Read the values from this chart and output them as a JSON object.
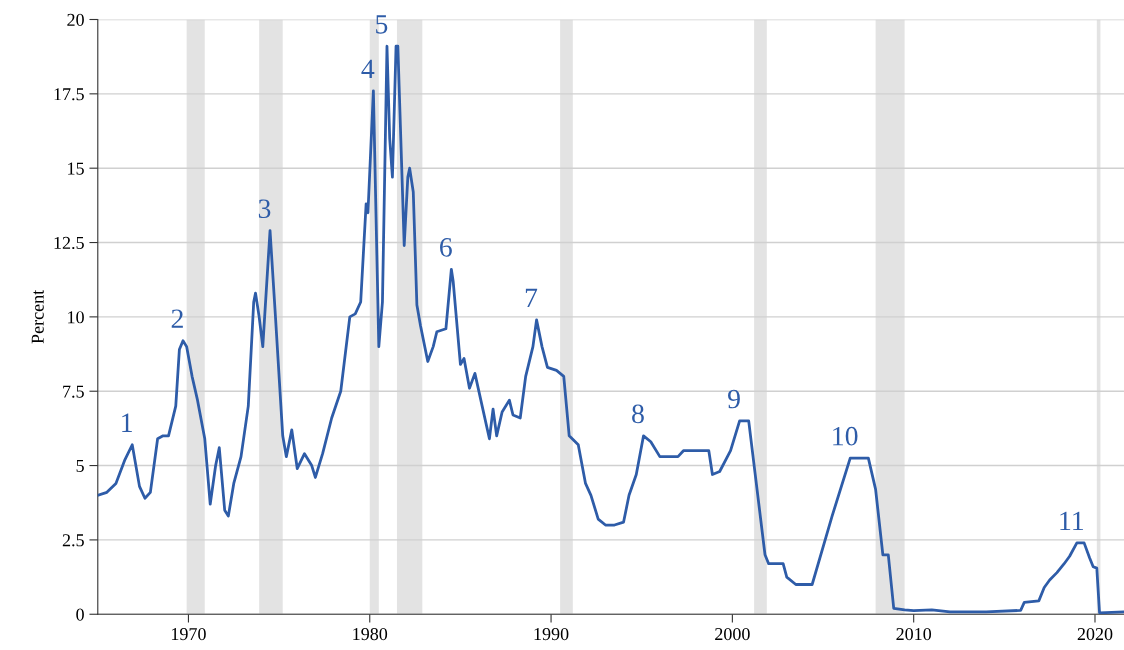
{
  "chart_data": {
    "type": "line",
    "ylabel": "Percent",
    "xlim": [
      1965,
      2021.6
    ],
    "ylim": [
      0,
      20
    ],
    "xticks": [
      1970,
      1980,
      1990,
      2000,
      2010,
      2020
    ],
    "yticks": [
      0,
      2.5,
      5,
      7.5,
      10,
      12.5,
      15,
      17.5,
      20
    ],
    "grid": "y",
    "marker": "none",
    "line_style": "solid",
    "series": [
      {
        "color": "#2e5ca8",
        "x": [
          1965.0,
          1965.5,
          1966.0,
          1966.5,
          1966.9,
          1967.3,
          1967.6,
          1967.9,
          1968.3,
          1968.6,
          1968.9,
          1969.3,
          1969.5,
          1969.7,
          1969.9,
          1970.2,
          1970.5,
          1970.9,
          1971.2,
          1971.5,
          1971.7,
          1972.0,
          1972.2,
          1972.5,
          1972.9,
          1973.3,
          1973.6,
          1973.7,
          1973.9,
          1974.1,
          1974.5,
          1974.8,
          1975.2,
          1975.4,
          1975.7,
          1976.0,
          1976.4,
          1976.8,
          1977.0,
          1977.4,
          1977.9,
          1978.4,
          1978.9,
          1979.2,
          1979.5,
          1979.8,
          1979.9,
          1980.2,
          1980.5,
          1980.7,
          1980.95,
          1981.1,
          1981.25,
          1981.45,
          1981.55,
          1981.9,
          1982.1,
          1982.2,
          1982.4,
          1982.6,
          1982.8,
          1983.2,
          1983.5,
          1983.7,
          1984.2,
          1984.5,
          1984.6,
          1985.0,
          1985.2,
          1985.5,
          1985.8,
          1986.2,
          1986.6,
          1986.8,
          1987.0,
          1987.3,
          1987.7,
          1987.9,
          1988.3,
          1988.6,
          1989.0,
          1989.2,
          1989.5,
          1989.8,
          1990.3,
          1990.7,
          1991.0,
          1991.5,
          1991.9,
          1992.2,
          1992.6,
          1993.0,
          1993.5,
          1994.0,
          1994.3,
          1994.7,
          1995.1,
          1995.5,
          1996.0,
          1996.5,
          1997.0,
          1997.3,
          1998.0,
          1998.7,
          1998.9,
          1999.3,
          1999.9,
          2000.4,
          2000.9,
          2001.3,
          2001.8,
          2002.0,
          2002.8,
          2003.0,
          2003.5,
          2004.4,
          2005.5,
          2006.5,
          2007.5,
          2007.9,
          2008.3,
          2008.6,
          2008.9,
          2009.5,
          2010.0,
          2011.0,
          2012.0,
          2014.0,
          2015.9,
          2016.1,
          2016.9,
          2017.2,
          2017.5,
          2017.9,
          2018.3,
          2018.6,
          2019.0,
          2019.4,
          2019.7,
          2019.9,
          2020.1,
          2020.25,
          2021.6
        ],
        "values": [
          4.0,
          4.1,
          4.4,
          5.2,
          5.7,
          4.3,
          3.9,
          4.1,
          5.9,
          6.0,
          6.0,
          7.0,
          8.9,
          9.2,
          9.0,
          8.0,
          7.2,
          5.9,
          3.7,
          5.0,
          5.6,
          3.5,
          3.3,
          4.4,
          5.3,
          7.0,
          10.5,
          10.8,
          10.0,
          9.0,
          12.9,
          10.0,
          6.0,
          5.3,
          6.2,
          4.9,
          5.4,
          5.0,
          4.6,
          5.4,
          6.6,
          7.5,
          10.0,
          10.1,
          10.5,
          13.8,
          13.5,
          17.6,
          9.0,
          10.5,
          19.1,
          16.0,
          14.7,
          19.1,
          19.1,
          12.4,
          14.7,
          15.0,
          14.2,
          10.4,
          9.7,
          8.5,
          9.0,
          9.5,
          9.6,
          11.6,
          11.2,
          8.4,
          8.6,
          7.6,
          8.1,
          7.0,
          5.9,
          6.9,
          6.0,
          6.8,
          7.2,
          6.7,
          6.6,
          8.0,
          9.0,
          9.9,
          9.0,
          8.3,
          8.2,
          8.0,
          6.0,
          5.7,
          4.4,
          4.0,
          3.2,
          3.0,
          3.0,
          3.1,
          4.0,
          4.7,
          6.0,
          5.8,
          5.3,
          5.3,
          5.3,
          5.5,
          5.5,
          5.5,
          4.7,
          4.8,
          5.5,
          6.5,
          6.5,
          4.5,
          2.0,
          1.7,
          1.7,
          1.25,
          1.0,
          1.0,
          3.3,
          5.25,
          5.25,
          4.2,
          2.0,
          2.0,
          0.2,
          0.15,
          0.12,
          0.15,
          0.08,
          0.08,
          0.13,
          0.4,
          0.45,
          0.9,
          1.15,
          1.4,
          1.7,
          1.95,
          2.4,
          2.4,
          1.9,
          1.6,
          1.55,
          0.05,
          0.08
        ]
      }
    ],
    "bands": [
      {
        "axis": "x",
        "from": 1969.9,
        "to": 1970.9,
        "color": "#e3e3e3"
      },
      {
        "axis": "x",
        "from": 1973.9,
        "to": 1975.2,
        "color": "#e3e3e3"
      },
      {
        "axis": "x",
        "from": 1980.0,
        "to": 1980.5,
        "color": "#e3e3e3"
      },
      {
        "axis": "x",
        "from": 1981.5,
        "to": 1982.9,
        "color": "#e3e3e3"
      },
      {
        "axis": "x",
        "from": 1990.5,
        "to": 1991.2,
        "color": "#e3e3e3"
      },
      {
        "axis": "x",
        "from": 2001.2,
        "to": 2001.9,
        "color": "#e3e3e3"
      },
      {
        "axis": "x",
        "from": 2007.9,
        "to": 2009.5,
        "color": "#e3e3e3"
      },
      {
        "axis": "x",
        "from": 2020.1,
        "to": 2020.3,
        "color": "#e3e3e3"
      }
    ],
    "annotations": [
      {
        "text": "1",
        "x": 1966.9,
        "y": 5.7
      },
      {
        "text": "2",
        "x": 1969.7,
        "y": 9.2
      },
      {
        "text": "3",
        "x": 1974.5,
        "y": 12.9
      },
      {
        "text": "4",
        "x": 1980.2,
        "y": 17.6
      },
      {
        "text": "5",
        "x": 1980.95,
        "y": 19.1
      },
      {
        "text": "6",
        "x": 1984.5,
        "y": 11.6
      },
      {
        "text": "7",
        "x": 1989.2,
        "y": 9.9
      },
      {
        "text": "8",
        "x": 1995.1,
        "y": 6.0
      },
      {
        "text": "9",
        "x": 2000.4,
        "y": 6.5
      },
      {
        "text": "10",
        "x": 2006.5,
        "y": 5.25
      },
      {
        "text": "11",
        "x": 2019.0,
        "y": 2.4
      }
    ]
  }
}
